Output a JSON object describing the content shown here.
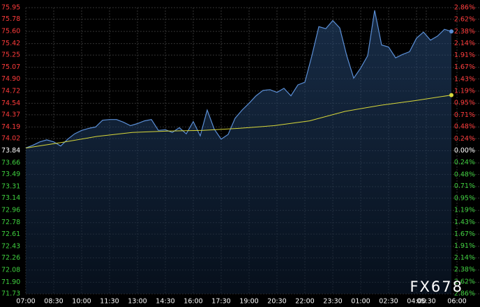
{
  "chart_data": {
    "type": "line",
    "watermark": "FX678",
    "xticks": [
      "07:00",
      "08:30",
      "10:00",
      "11:30",
      "13:00",
      "14:30",
      "16:00",
      "17:30",
      "19:00",
      "20:30",
      "22:00",
      "23:30",
      "01:00",
      "02:30",
      "04:00",
      "05:30",
      "06:00"
    ],
    "series": [
      {
        "name": "Price",
        "color": "#5b8fd6",
        "values": [
          73.88,
          73.92,
          73.97,
          74.0,
          73.97,
          73.91,
          74.01,
          74.09,
          74.14,
          74.17,
          74.19,
          74.29,
          74.3,
          74.3,
          74.26,
          74.21,
          74.24,
          74.28,
          74.3,
          74.14,
          74.15,
          74.11,
          74.18,
          74.09,
          74.27,
          74.06,
          74.44,
          74.16,
          74.01,
          74.08,
          74.32,
          74.44,
          74.54,
          74.65,
          74.73,
          74.74,
          74.7,
          74.76,
          74.65,
          74.81,
          74.85,
          75.24,
          75.67,
          75.64,
          75.76,
          75.65,
          75.24,
          74.91,
          75.06,
          75.24,
          75.91,
          75.4,
          75.37,
          75.21,
          75.26,
          75.3,
          75.5,
          75.59,
          75.47,
          75.53,
          75.63,
          75.6
        ]
      },
      {
        "name": "Average",
        "color": "#d8d83a",
        "values": [
          73.88,
          73.96,
          74.05,
          74.11,
          74.13,
          74.14,
          74.17,
          74.21,
          74.28,
          74.42,
          74.51,
          74.58,
          74.66
        ]
      }
    ],
    "ylim": [
      71.73,
      75.95
    ],
    "yticks": [
      75.95,
      75.78,
      {
        "value": 75.6,
        "label": "75.60"
      },
      75.42,
      75.25,
      75.07,
      {
        "value": 74.9,
        "label": "74.90"
      },
      74.72,
      74.54,
      74.37,
      74.19,
      74.02,
      73.84,
      73.66,
      73.49,
      73.31,
      73.14,
      72.96,
      72.78,
      72.61,
      72.43,
      72.26,
      72.08,
      {
        "value": 71.9,
        "label": "71.90"
      },
      71.73
    ],
    "y2lim": [
      -2.86,
      2.86
    ],
    "y2ticks": [
      {
        "value": 2.86,
        "label": "2.86%"
      },
      {
        "value": 2.62,
        "label": "2.62%"
      },
      {
        "value": 2.38,
        "label": "2.38%"
      },
      {
        "value": 2.14,
        "label": "2.14%"
      },
      {
        "value": 1.91,
        "label": "1.91%"
      },
      {
        "value": 1.67,
        "label": "1.67%"
      },
      {
        "value": 1.43,
        "label": "1.43%"
      },
      {
        "value": 1.19,
        "label": "1.19%"
      },
      {
        "value": 0.95,
        "label": "0.95%"
      },
      {
        "value": 0.71,
        "label": "0.71%"
      },
      {
        "value": 0.48,
        "label": "0.48%"
      },
      {
        "value": 0.24,
        "label": "0.24%"
      },
      {
        "value": 0,
        "label": "0.00%"
      },
      {
        "value": -0.24,
        "label": "0.24%"
      },
      {
        "value": -0.48,
        "label": "0.48%"
      },
      {
        "value": -0.71,
        "label": "0.71%"
      },
      {
        "value": -0.95,
        "label": "0.95%"
      },
      {
        "value": -1.19,
        "label": "1.19%"
      },
      {
        "value": -1.43,
        "label": "1.43%"
      },
      {
        "value": -1.67,
        "label": "1.67%"
      },
      {
        "value": -1.91,
        "label": "1.91%"
      },
      {
        "value": -2.14,
        "label": "2.14%"
      },
      {
        "value": -2.38,
        "label": "2.38%"
      },
      {
        "value": -2.62,
        "label": "2.62%"
      },
      {
        "value": -2.86,
        "label": "2.86%"
      }
    ],
    "up_color": "#ff3b3b",
    "down_color": "#3fcf3f",
    "flat_color": "#ffffff",
    "grid": true
  }
}
